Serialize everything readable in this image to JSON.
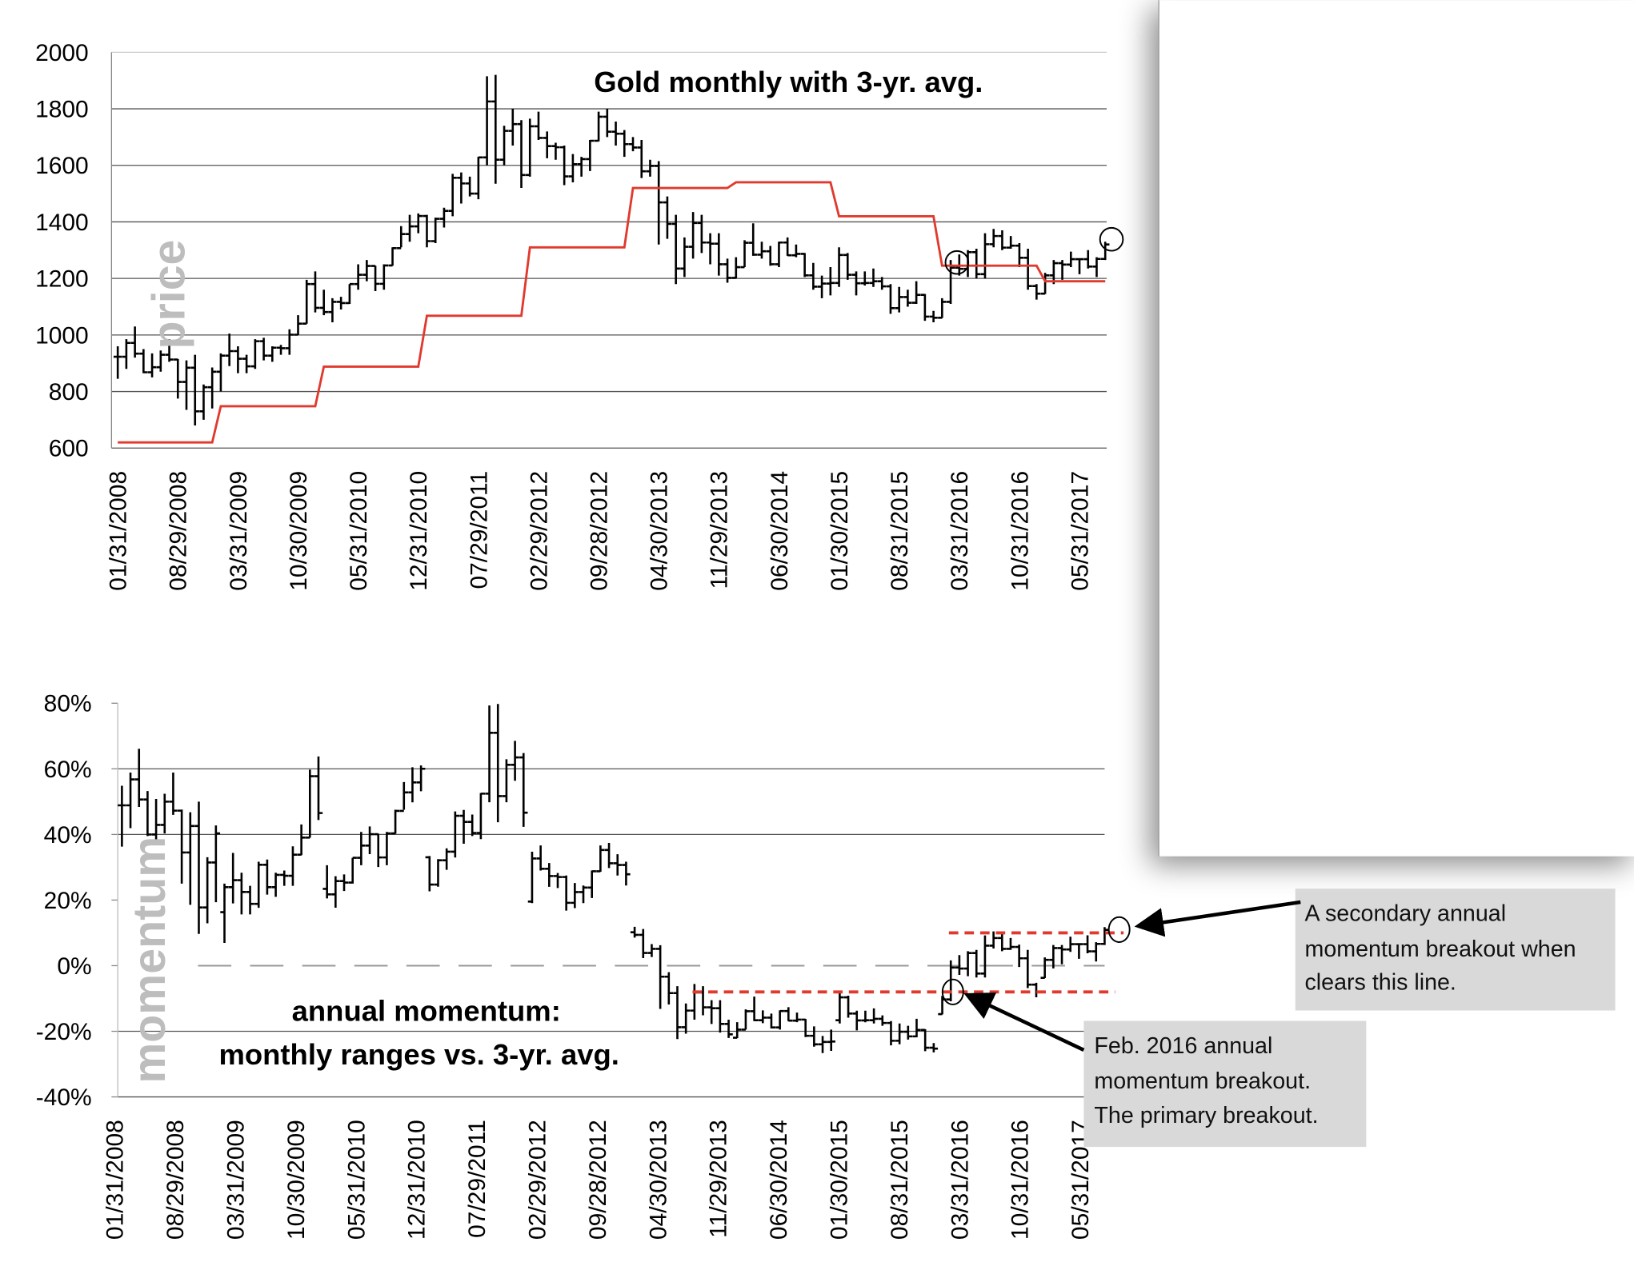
{
  "chart_data": [
    {
      "type": "ohlc-line",
      "title": "Gold monthly with 3-yr. avg.",
      "ylabel": "price",
      "ylim": [
        600,
        2000
      ],
      "yticks": [
        600,
        800,
        1000,
        1200,
        1400,
        1600,
        1800,
        2000
      ],
      "grid": true,
      "start_month": "2008-01",
      "xtick_labels": [
        "01/31/2008",
        "08/29/2008",
        "03/31/2009",
        "10/30/2009",
        "05/31/2010",
        "12/31/2010",
        "07/29/2011",
        "02/29/2012",
        "09/28/2012",
        "04/30/2013",
        "11/29/2013",
        "06/30/2014",
        "01/30/2015",
        "08/31/2015",
        "03/31/2016",
        "10/31/2016",
        "05/31/2017"
      ],
      "bars_high_low_close": [
        [
          960,
          845,
          923
        ],
        [
          985,
          880,
          972
        ],
        [
          1030,
          920,
          934
        ],
        [
          950,
          865,
          868
        ],
        [
          935,
          850,
          886
        ],
        [
          945,
          870,
          930
        ],
        [
          985,
          905,
          913
        ],
        [
          915,
          775,
          834
        ],
        [
          910,
          735,
          884
        ],
        [
          930,
          680,
          730
        ],
        [
          825,
          700,
          815
        ],
        [
          885,
          740,
          870
        ],
        [
          935,
          800,
          927
        ],
        [
          1005,
          890,
          943
        ],
        [
          960,
          865,
          916
        ],
        [
          930,
          865,
          889
        ],
        [
          985,
          880,
          978
        ],
        [
          990,
          910,
          927
        ],
        [
          960,
          905,
          955
        ],
        [
          965,
          930,
          953
        ],
        [
          1020,
          930,
          1001
        ],
        [
          1070,
          1000,
          1040
        ],
        [
          1195,
          1040,
          1180
        ],
        [
          1225,
          1080,
          1096
        ],
        [
          1160,
          1070,
          1081
        ],
        [
          1130,
          1045,
          1117
        ],
        [
          1135,
          1090,
          1113
        ],
        [
          1180,
          1110,
          1180
        ],
        [
          1250,
          1160,
          1213
        ],
        [
          1265,
          1190,
          1244
        ],
        [
          1245,
          1155,
          1181
        ],
        [
          1250,
          1160,
          1246
        ],
        [
          1310,
          1245,
          1307
        ],
        [
          1385,
          1310,
          1357
        ],
        [
          1425,
          1330,
          1384
        ],
        [
          1430,
          1360,
          1421
        ],
        [
          1425,
          1310,
          1332
        ],
        [
          1415,
          1325,
          1411
        ],
        [
          1450,
          1380,
          1439
        ],
        [
          1570,
          1420,
          1556
        ],
        [
          1575,
          1465,
          1536
        ],
        [
          1560,
          1490,
          1500
        ],
        [
          1630,
          1480,
          1628
        ],
        [
          1915,
          1600,
          1826
        ],
        [
          1920,
          1535,
          1620
        ],
        [
          1740,
          1600,
          1722
        ],
        [
          1800,
          1670,
          1746
        ],
        [
          1760,
          1520,
          1566
        ],
        [
          1765,
          1560,
          1738
        ],
        [
          1790,
          1690,
          1697
        ],
        [
          1720,
          1625,
          1668
        ],
        [
          1680,
          1620,
          1664
        ],
        [
          1670,
          1530,
          1561
        ],
        [
          1640,
          1540,
          1604
        ],
        [
          1630,
          1560,
          1622
        ],
        [
          1690,
          1580,
          1687
        ],
        [
          1790,
          1685,
          1772
        ],
        [
          1800,
          1700,
          1719
        ],
        [
          1755,
          1670,
          1712
        ],
        [
          1725,
          1630,
          1675
        ],
        [
          1700,
          1650,
          1663
        ],
        [
          1690,
          1555,
          1579
        ],
        [
          1620,
          1560,
          1598
        ],
        [
          1615,
          1320,
          1469
        ],
        [
          1490,
          1340,
          1393
        ],
        [
          1425,
          1180,
          1235
        ],
        [
          1345,
          1205,
          1312
        ],
        [
          1435,
          1270,
          1396
        ],
        [
          1425,
          1290,
          1327
        ],
        [
          1360,
          1250,
          1323
        ],
        [
          1360,
          1210,
          1250
        ],
        [
          1270,
          1185,
          1202
        ],
        [
          1275,
          1200,
          1240
        ],
        [
          1335,
          1240,
          1326
        ],
        [
          1395,
          1280,
          1284
        ],
        [
          1330,
          1270,
          1296
        ],
        [
          1315,
          1245,
          1250
        ],
        [
          1330,
          1240,
          1327
        ],
        [
          1345,
          1280,
          1282
        ],
        [
          1320,
          1275,
          1287
        ],
        [
          1290,
          1205,
          1211
        ],
        [
          1255,
          1160,
          1171
        ],
        [
          1210,
          1130,
          1182
        ],
        [
          1240,
          1140,
          1184
        ],
        [
          1310,
          1170,
          1283
        ],
        [
          1290,
          1195,
          1213
        ],
        [
          1225,
          1140,
          1183
        ],
        [
          1225,
          1175,
          1184
        ],
        [
          1235,
          1170,
          1190
        ],
        [
          1205,
          1160,
          1172
        ],
        [
          1180,
          1075,
          1095
        ],
        [
          1170,
          1080,
          1134
        ],
        [
          1160,
          1100,
          1114
        ],
        [
          1190,
          1110,
          1142
        ],
        [
          1145,
          1050,
          1065
        ],
        [
          1085,
          1045,
          1061
        ],
        [
          1130,
          1060,
          1117
        ],
        [
          1265,
          1110,
          1238
        ],
        [
          1285,
          1210,
          1234
        ],
        [
          1300,
          1205,
          1293
        ],
        [
          1305,
          1200,
          1215
        ],
        [
          1360,
          1200,
          1321
        ],
        [
          1375,
          1310,
          1350
        ],
        [
          1370,
          1300,
          1309
        ],
        [
          1350,
          1305,
          1316
        ],
        [
          1325,
          1240,
          1273
        ],
        [
          1305,
          1160,
          1173
        ],
        [
          1180,
          1125,
          1146
        ],
        [
          1220,
          1145,
          1211
        ],
        [
          1265,
          1180,
          1254
        ],
        [
          1265,
          1195,
          1249
        ],
        [
          1295,
          1240,
          1268
        ],
        [
          1270,
          1215,
          1268
        ],
        [
          1300,
          1235,
          1242
        ],
        [
          1275,
          1205,
          1269
        ],
        [
          1330,
          1265,
          1320
        ]
      ],
      "three_year_avg_by_year": [
        [
          2008,
          620
        ],
        [
          2009,
          748
        ],
        [
          2010,
          888
        ],
        [
          2011,
          1068
        ],
        [
          2012,
          1310
        ],
        [
          2013,
          1520
        ],
        [
          2014,
          1540
        ],
        [
          2015,
          1420
        ],
        [
          2016,
          1245
        ],
        [
          2017,
          1190
        ]
      ],
      "avg_line_color": "#e03a2e",
      "circled_months": [
        "2016-02",
        "2017-08"
      ]
    },
    {
      "type": "ohlc-line",
      "title_lines": [
        "annual momentum:",
        "monthly ranges vs. 3-yr. avg."
      ],
      "ylabel": "momentum",
      "ylim": [
        -40,
        80
      ],
      "yticks": [
        "-40%",
        "-20%",
        "0%",
        "20%",
        "40%",
        "60%",
        "80%"
      ],
      "ytick_values": [
        -40,
        -20,
        0,
        20,
        40,
        60,
        80
      ],
      "xtick_labels": [
        "01/31/2008",
        "08/29/2008",
        "03/31/2009",
        "10/30/2009",
        "05/31/2010",
        "12/31/2010",
        "07/29/2011",
        "02/29/2012",
        "09/28/2012",
        "04/30/2013",
        "11/29/2013",
        "06/30/2014",
        "01/30/2015",
        "08/31/2015",
        "03/31/2016",
        "10/31/2016",
        "05/31/2017"
      ],
      "breakout_lines": [
        {
          "value": -8,
          "from": "2013-09",
          "to": "2017-08",
          "color": "#e03a2e"
        },
        {
          "value": 10,
          "from": "2016-03",
          "to": "2017-09",
          "color": "#e03a2e"
        }
      ],
      "circled_months": [
        "2016-02",
        "2017-08"
      ],
      "annotations": [
        {
          "text_lines": [
            "A secondary annual",
            "momentum breakout when",
            "clears this line."
          ]
        },
        {
          "text_lines": [
            "Feb. 2016 annual",
            "momentum breakout.",
            "The primary breakout."
          ]
        }
      ]
    }
  ]
}
